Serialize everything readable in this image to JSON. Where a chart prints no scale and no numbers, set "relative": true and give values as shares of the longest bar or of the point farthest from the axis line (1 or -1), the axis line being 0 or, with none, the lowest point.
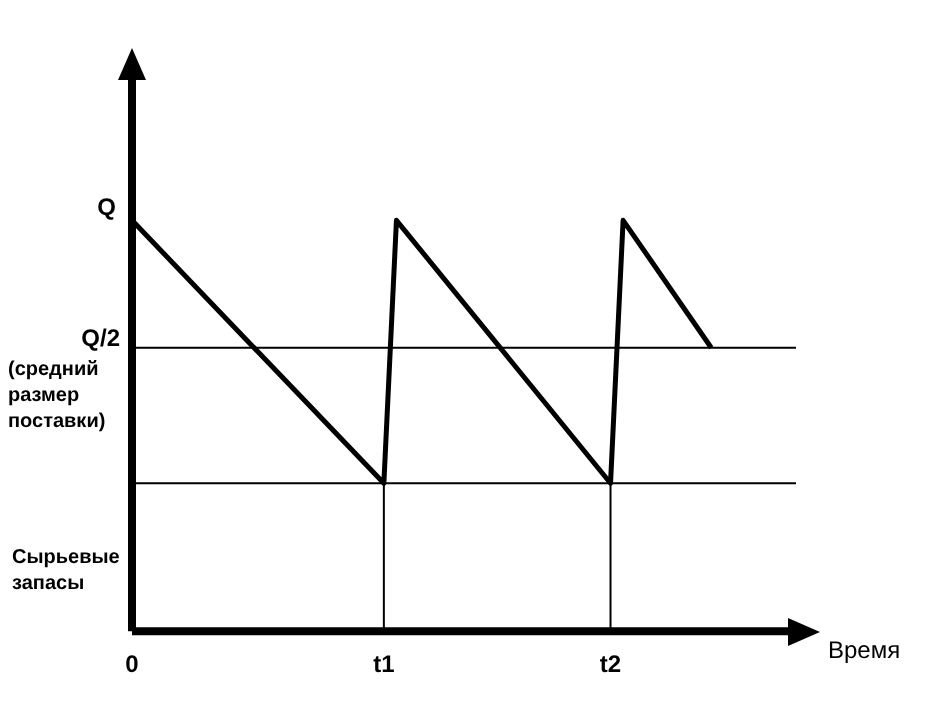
{
  "chart_data": {
    "type": "line",
    "relative": true,
    "categories": [
      "0",
      null,
      null,
      null,
      null,
      null,
      null,
      null,
      null,
      null,
      null,
      null,
      null,
      null,
      null,
      null,
      null,
      null,
      null,
      null,
      "t1",
      null,
      null,
      null,
      null,
      null,
      null,
      null,
      null,
      null,
      null,
      null,
      null,
      null,
      null,
      null,
      null,
      null,
      "t2",
      null,
      null,
      null,
      null,
      null,
      null,
      null,
      null,
      null,
      null,
      null,
      null,
      null,
      null,
      null,
      null
    ],
    "values": [
      1,
      null,
      null,
      null,
      null,
      null,
      null,
      null,
      null,
      null,
      null,
      null,
      null,
      null,
      null,
      null,
      null,
      null,
      null,
      null,
      0.36,
      1,
      null,
      null,
      null,
      null,
      null,
      null,
      null,
      null,
      null,
      null,
      null,
      null,
      null,
      null,
      null,
      null,
      0.36,
      1,
      null,
      null,
      null,
      null,
      null,
      null,
      0.69,
      null,
      null,
      null,
      null,
      null,
      null,
      null,
      null
    ],
    "color": "#000000",
    "marker": "none",
    "xlabel": "Время",
    "ylabel": "Сырьевые запасы",
    "annotations": [
      {
        "text": "Q",
        "x": "0",
        "y": 1
      }
    ],
    "ref_lines": [
      {
        "axis": "y",
        "value": 0.69,
        "label": "Q/2 (средний размер поставки)"
      },
      {
        "axis": "y",
        "value": 0.36,
        "label": null
      },
      {
        "axis": "x",
        "value": "t1",
        "label": null
      },
      {
        "axis": "x",
        "value": "t2",
        "label": null
      }
    ]
  }
}
